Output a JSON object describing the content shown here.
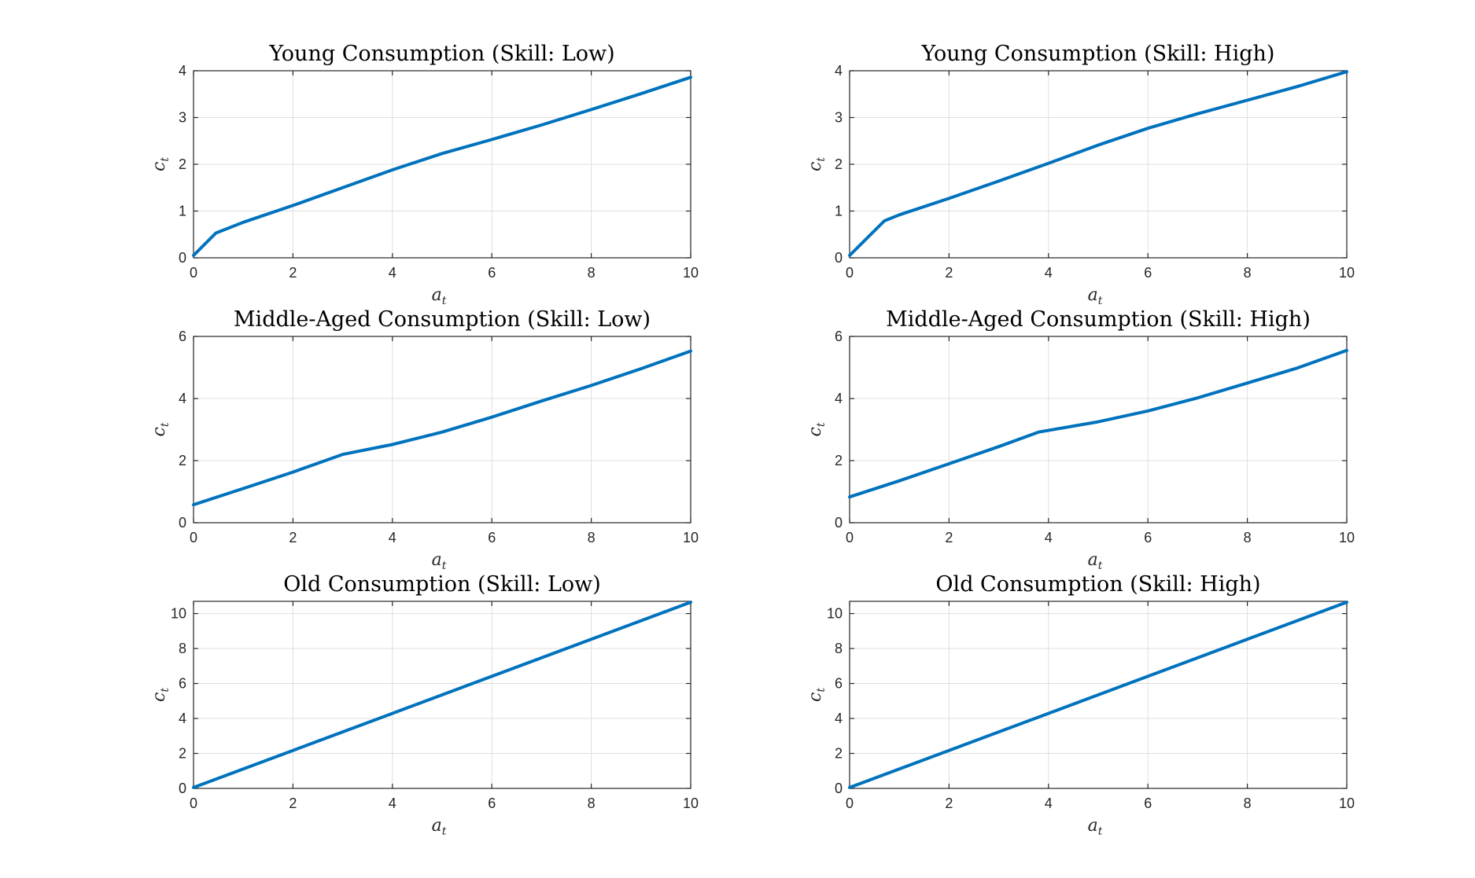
{
  "chart_data": [
    {
      "type": "line",
      "title": "Young Consumption (Skill: Low)",
      "xlabel": "a",
      "xlabel_sub": "t",
      "ylabel": "c",
      "ylabel_sub": "t",
      "xlim": [
        0,
        10
      ],
      "ylim": [
        0,
        4
      ],
      "xticks": [
        0,
        2,
        4,
        6,
        8,
        10
      ],
      "yticks": [
        0,
        1,
        2,
        3,
        4
      ],
      "grid": true,
      "color": "#0072BD",
      "x": [
        0,
        0.45,
        1,
        2,
        3,
        4,
        5,
        6,
        7,
        8,
        9,
        10
      ],
      "y": [
        0.05,
        0.53,
        0.76,
        1.12,
        1.5,
        1.88,
        2.23,
        2.53,
        2.84,
        3.17,
        3.51,
        3.86
      ]
    },
    {
      "type": "line",
      "title": "Young Consumption (Skill: High)",
      "xlabel": "a",
      "xlabel_sub": "t",
      "ylabel": "c",
      "ylabel_sub": "t",
      "xlim": [
        0,
        10
      ],
      "ylim": [
        0,
        4
      ],
      "xticks": [
        0,
        2,
        4,
        6,
        8,
        10
      ],
      "yticks": [
        0,
        1,
        2,
        3,
        4
      ],
      "grid": true,
      "color": "#0072BD",
      "x": [
        0,
        0.7,
        1,
        2,
        3,
        4,
        5,
        6,
        7,
        8,
        9,
        10
      ],
      "y": [
        0.05,
        0.79,
        0.92,
        1.27,
        1.64,
        2.02,
        2.41,
        2.77,
        3.08,
        3.37,
        3.66,
        3.98
      ]
    },
    {
      "type": "line",
      "title": "Middle-Aged Consumption (Skill: Low)",
      "xlabel": "a",
      "xlabel_sub": "t",
      "ylabel": "c",
      "ylabel_sub": "t",
      "xlim": [
        0,
        10
      ],
      "ylim": [
        0,
        6
      ],
      "xticks": [
        0,
        2,
        4,
        6,
        8,
        10
      ],
      "yticks": [
        0,
        2,
        4,
        6
      ],
      "grid": true,
      "color": "#0072BD",
      "x": [
        0,
        1,
        2,
        3,
        4,
        5,
        6,
        7,
        8,
        9,
        10
      ],
      "y": [
        0.58,
        1.1,
        1.63,
        2.2,
        2.52,
        2.92,
        3.4,
        3.92,
        4.42,
        4.96,
        5.53
      ]
    },
    {
      "type": "line",
      "title": "Middle-Aged Consumption (Skill: High)",
      "xlabel": "a",
      "xlabel_sub": "t",
      "ylabel": "c",
      "ylabel_sub": "t",
      "xlim": [
        0,
        10
      ],
      "ylim": [
        0,
        6
      ],
      "xticks": [
        0,
        2,
        4,
        6,
        8,
        10
      ],
      "yticks": [
        0,
        2,
        4,
        6
      ],
      "grid": true,
      "color": "#0072BD",
      "x": [
        0,
        1,
        2,
        3,
        3.8,
        5,
        6,
        7,
        8,
        9,
        10
      ],
      "y": [
        0.83,
        1.35,
        1.9,
        2.45,
        2.92,
        3.25,
        3.6,
        4.02,
        4.5,
        4.98,
        5.55
      ]
    },
    {
      "type": "line",
      "title": "Old Consumption (Skill: Low)",
      "xlabel": "a",
      "xlabel_sub": "t",
      "ylabel": "c",
      "ylabel_sub": "t",
      "xlim": [
        0,
        10
      ],
      "ylim": [
        0,
        10.7
      ],
      "xticks": [
        0,
        2,
        4,
        6,
        8,
        10
      ],
      "yticks": [
        0,
        2,
        4,
        6,
        8,
        10
      ],
      "grid": true,
      "color": "#0072BD",
      "x": [
        0,
        2,
        4,
        6,
        8,
        10
      ],
      "y": [
        0.05,
        2.17,
        4.29,
        6.41,
        8.53,
        10.65
      ]
    },
    {
      "type": "line",
      "title": "Old Consumption (Skill: High)",
      "xlabel": "a",
      "xlabel_sub": "t",
      "ylabel": "c",
      "ylabel_sub": "t",
      "xlim": [
        0,
        10
      ],
      "ylim": [
        0,
        10.7
      ],
      "xticks": [
        0,
        2,
        4,
        6,
        8,
        10
      ],
      "yticks": [
        0,
        2,
        4,
        6,
        8,
        10
      ],
      "grid": true,
      "color": "#0072BD",
      "x": [
        0,
        2,
        4,
        6,
        8,
        10
      ],
      "y": [
        0.05,
        2.17,
        4.29,
        6.41,
        8.53,
        10.65
      ]
    }
  ]
}
